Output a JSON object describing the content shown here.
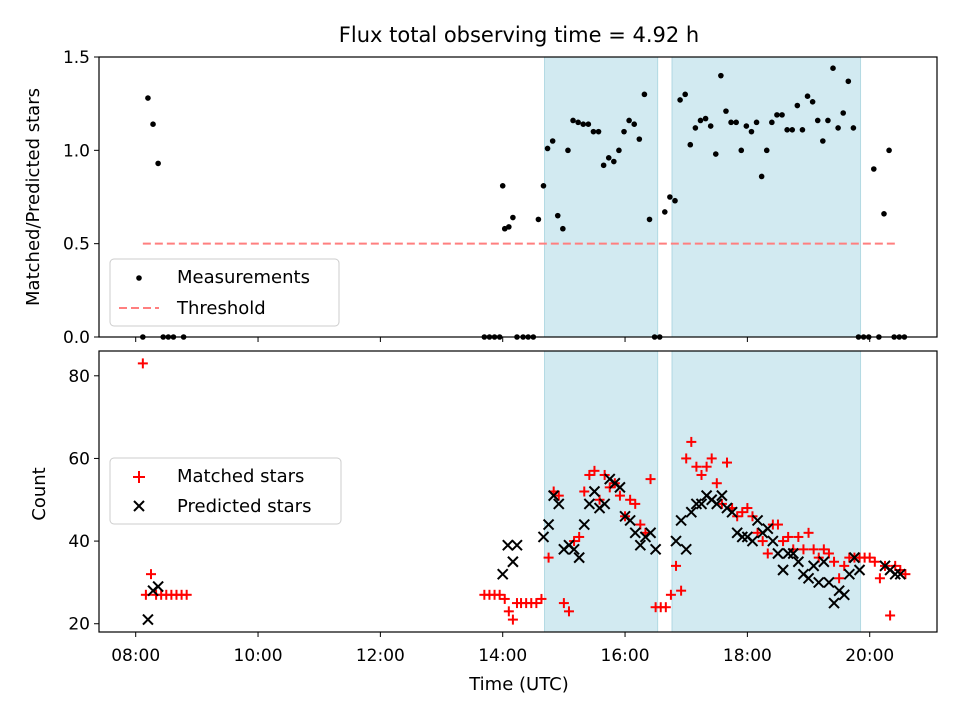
{
  "chart_data": [
    {
      "type": "scatter",
      "title": "Flux total observing time = 4.92 h",
      "xlabel": "",
      "ylabel": "Matched/Predicted stars",
      "xlim_hours": [
        7.4,
        21.1
      ],
      "ylim": [
        0,
        1.5
      ],
      "yticks": [
        0.0,
        0.5,
        1.0,
        1.5
      ],
      "ytick_labels": [
        "0.0",
        "0.5",
        "1.0",
        "1.5"
      ],
      "xticks": [
        "08:00",
        "10:00",
        "12:00",
        "14:00",
        "16:00",
        "18:00",
        "20:00"
      ],
      "shaded_intervals": [
        [
          "14:41",
          "16:32"
        ],
        [
          "16:46",
          "19:51"
        ]
      ],
      "shade_color": "#add8e6",
      "threshold": {
        "name": "Threshold",
        "value": 0.5,
        "x_range": [
          "08:07",
          "20:25"
        ],
        "color": "#ff7f7f"
      },
      "series": [
        {
          "name": "Measurements",
          "color": "#000000",
          "x": [
            "08:07",
            "08:12",
            "08:17",
            "08:22",
            "08:27",
            "08:32",
            "08:37",
            "08:47",
            "13:42",
            "13:47",
            "13:52",
            "13:57",
            "14:00",
            "14:02",
            "14:06",
            "14:10",
            "14:14",
            "14:20",
            "14:25",
            "14:30",
            "14:35",
            "14:40",
            "14:44",
            "14:49",
            "14:54",
            "14:59",
            "15:04",
            "15:09",
            "15:14",
            "15:19",
            "15:24",
            "15:29",
            "15:34",
            "15:39",
            "15:44",
            "15:49",
            "15:54",
            "15:59",
            "16:04",
            "16:09",
            "16:14",
            "16:19",
            "16:24",
            "16:29",
            "16:34",
            "16:39",
            "16:44",
            "16:49",
            "16:54",
            "16:59",
            "17:04",
            "17:09",
            "17:14",
            "17:19",
            "17:24",
            "17:29",
            "17:34",
            "17:39",
            "17:44",
            "17:49",
            "17:54",
            "17:59",
            "18:04",
            "18:09",
            "18:14",
            "18:19",
            "18:24",
            "18:29",
            "18:34",
            "18:39",
            "18:44",
            "18:49",
            "18:54",
            "18:59",
            "19:04",
            "19:09",
            "19:14",
            "19:19",
            "19:24",
            "19:29",
            "19:34",
            "19:39",
            "19:44",
            "19:49",
            "19:54",
            "19:59",
            "20:04",
            "20:09",
            "20:14",
            "20:19",
            "20:24",
            "20:29",
            "20:34"
          ],
          "y": [
            0.0,
            1.28,
            1.14,
            0.93,
            0.0,
            0.0,
            0.0,
            0.0,
            0.0,
            0.0,
            0.0,
            0.0,
            0.81,
            0.58,
            0.59,
            0.64,
            0.0,
            0.0,
            0.0,
            0.0,
            0.63,
            0.81,
            1.01,
            1.05,
            0.65,
            0.58,
            1.0,
            1.16,
            1.15,
            1.14,
            1.14,
            1.1,
            1.1,
            0.92,
            0.96,
            0.94,
            1.0,
            1.1,
            1.16,
            1.14,
            1.06,
            1.3,
            0.63,
            0.0,
            0.0,
            0.67,
            0.75,
            0.73,
            1.27,
            1.3,
            1.03,
            1.12,
            1.16,
            1.17,
            1.13,
            0.98,
            1.4,
            1.21,
            1.15,
            1.15,
            1.0,
            1.13,
            1.1,
            1.15,
            0.86,
            1.0,
            1.15,
            1.19,
            1.19,
            1.11,
            1.11,
            1.24,
            1.11,
            1.29,
            1.26,
            1.16,
            1.05,
            1.16,
            1.44,
            1.12,
            1.2,
            1.37,
            1.12,
            0.0,
            0.0,
            0.0,
            0.9,
            0.0,
            0.66,
            1.0,
            0.0,
            0.0,
            0.0
          ]
        }
      ]
    },
    {
      "type": "scatter",
      "title": "",
      "xlabel": "Time (UTC)",
      "ylabel": "Count",
      "xlim_hours": [
        7.4,
        21.1
      ],
      "ylim": [
        18,
        86
      ],
      "yticks": [
        20,
        40,
        60,
        80
      ],
      "ytick_labels": [
        "20",
        "40",
        "60",
        "80"
      ],
      "xticks": [
        "08:00",
        "10:00",
        "12:00",
        "14:00",
        "16:00",
        "18:00",
        "20:00"
      ],
      "series": [
        {
          "name": "Matched stars",
          "marker": "plus",
          "color": "#ff0000",
          "x": [
            "08:07",
            "08:10",
            "08:15",
            "08:20",
            "08:25",
            "08:30",
            "08:35",
            "08:40",
            "08:45",
            "08:50",
            "13:42",
            "13:47",
            "13:52",
            "13:57",
            "14:02",
            "14:06",
            "14:10",
            "14:14",
            "14:18",
            "14:23",
            "14:28",
            "14:33",
            "14:38",
            "14:45",
            "14:50",
            "14:55",
            "15:00",
            "15:05",
            "15:10",
            "15:15",
            "15:20",
            "15:25",
            "15:30",
            "15:35",
            "15:40",
            "15:45",
            "15:50",
            "15:55",
            "16:00",
            "16:05",
            "16:10",
            "16:15",
            "16:20",
            "16:25",
            "16:30",
            "16:35",
            "16:40",
            "16:45",
            "16:50",
            "16:55",
            "17:00",
            "17:05",
            "17:10",
            "17:15",
            "17:20",
            "17:25",
            "17:30",
            "17:35",
            "17:40",
            "17:45",
            "17:50",
            "17:55",
            "18:00",
            "18:05",
            "18:10",
            "18:15",
            "18:20",
            "18:25",
            "18:30",
            "18:35",
            "18:40",
            "18:45",
            "18:50",
            "18:55",
            "19:00",
            "19:05",
            "19:10",
            "19:15",
            "19:20",
            "19:25",
            "19:30",
            "19:35",
            "19:40",
            "19:45",
            "19:50",
            "19:55",
            "20:00",
            "20:05",
            "20:10",
            "20:15",
            "20:20",
            "20:25",
            "20:30",
            "20:35"
          ],
          "y": [
            83,
            27,
            32,
            27,
            27,
            27,
            27,
            27,
            27,
            27,
            27,
            27,
            27,
            27,
            26,
            23,
            21,
            25,
            25,
            25,
            25,
            25,
            26,
            36,
            52,
            51,
            25,
            23,
            40,
            41,
            52,
            56,
            57,
            50,
            56,
            53,
            54,
            51,
            46,
            50,
            49,
            44,
            42,
            55,
            24,
            24,
            24,
            27,
            34,
            28,
            60,
            64,
            58,
            56,
            58,
            60,
            54,
            49,
            59,
            48,
            46,
            47,
            48,
            46,
            42,
            40,
            37,
            44,
            44,
            40,
            41,
            38,
            41,
            38,
            42,
            38,
            36,
            38,
            37,
            35,
            31,
            34,
            36,
            36,
            36,
            36,
            36,
            35,
            31,
            34,
            22,
            34,
            33,
            32
          ]
        },
        {
          "name": "Predicted stars",
          "marker": "x",
          "color": "#000000",
          "x": [
            "08:12",
            "08:17",
            "08:22",
            "14:00",
            "14:05",
            "14:10",
            "14:14",
            "14:40",
            "14:45",
            "14:50",
            "14:55",
            "15:00",
            "15:05",
            "15:10",
            "15:15",
            "15:20",
            "15:25",
            "15:30",
            "15:35",
            "15:40",
            "15:45",
            "15:50",
            "15:55",
            "16:00",
            "16:05",
            "16:10",
            "16:15",
            "16:20",
            "16:25",
            "16:30",
            "16:50",
            "16:55",
            "17:00",
            "17:05",
            "17:10",
            "17:15",
            "17:20",
            "17:25",
            "17:30",
            "17:35",
            "17:40",
            "17:45",
            "17:50",
            "17:55",
            "18:00",
            "18:05",
            "18:10",
            "18:15",
            "18:20",
            "18:25",
            "18:30",
            "18:35",
            "18:40",
            "18:45",
            "18:50",
            "18:55",
            "19:00",
            "19:05",
            "19:10",
            "19:15",
            "19:20",
            "19:25",
            "19:30",
            "19:35",
            "19:40",
            "19:45",
            "19:50",
            "20:15",
            "20:20",
            "20:25",
            "20:30"
          ],
          "y": [
            21,
            28,
            29,
            32,
            39,
            35,
            39,
            41,
            44,
            51,
            49,
            38,
            39,
            38,
            36,
            44,
            49,
            52,
            48,
            49,
            55,
            54,
            53,
            46,
            45,
            42,
            39,
            41,
            42,
            38,
            40,
            45,
            38,
            47,
            49,
            49,
            51,
            50,
            49,
            51,
            48,
            47,
            42,
            41,
            41,
            40,
            45,
            42,
            43,
            40,
            37,
            33,
            37,
            37,
            35,
            32,
            31,
            34,
            30,
            35,
            30,
            25,
            28,
            27,
            32,
            36,
            33,
            34,
            33,
            32,
            32
          ]
        }
      ]
    }
  ]
}
